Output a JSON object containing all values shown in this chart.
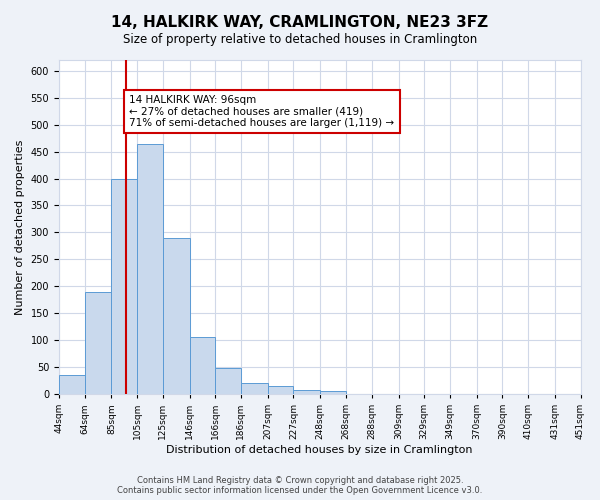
{
  "title": "14, HALKIRK WAY, CRAMLINGTON, NE23 3FZ",
  "subtitle": "Size of property relative to detached houses in Cramlington",
  "xlabel": "Distribution of detached houses by size in Cramlington",
  "ylabel": "Number of detached properties",
  "bin_edges": [
    44,
    64,
    85,
    105,
    125,
    146,
    166,
    186,
    207,
    227,
    248,
    268,
    288,
    309,
    329,
    349,
    370,
    390,
    410,
    431,
    451
  ],
  "bar_heights": [
    35,
    190,
    400,
    465,
    290,
    105,
    48,
    20,
    15,
    8,
    5,
    0,
    0,
    0,
    0,
    0,
    1,
    0,
    0,
    0
  ],
  "bar_color": "#c9d9ed",
  "bar_edgecolor": "#5b9bd5",
  "grid_color": "#d0d8e8",
  "property_line_x": 96,
  "property_line_color": "#cc0000",
  "annotation_box_text": "14 HALKIRK WAY: 96sqm\n← 27% of detached houses are smaller (419)\n71% of semi-detached houses are larger (1,119) →",
  "ylim": [
    0,
    620
  ],
  "yticks": [
    0,
    50,
    100,
    150,
    200,
    250,
    300,
    350,
    400,
    450,
    500,
    550,
    600
  ],
  "footer_text": "Contains HM Land Registry data © Crown copyright and database right 2025.\nContains public sector information licensed under the Open Government Licence v3.0.",
  "background_color": "#eef2f8",
  "plot_bg_color": "#ffffff"
}
